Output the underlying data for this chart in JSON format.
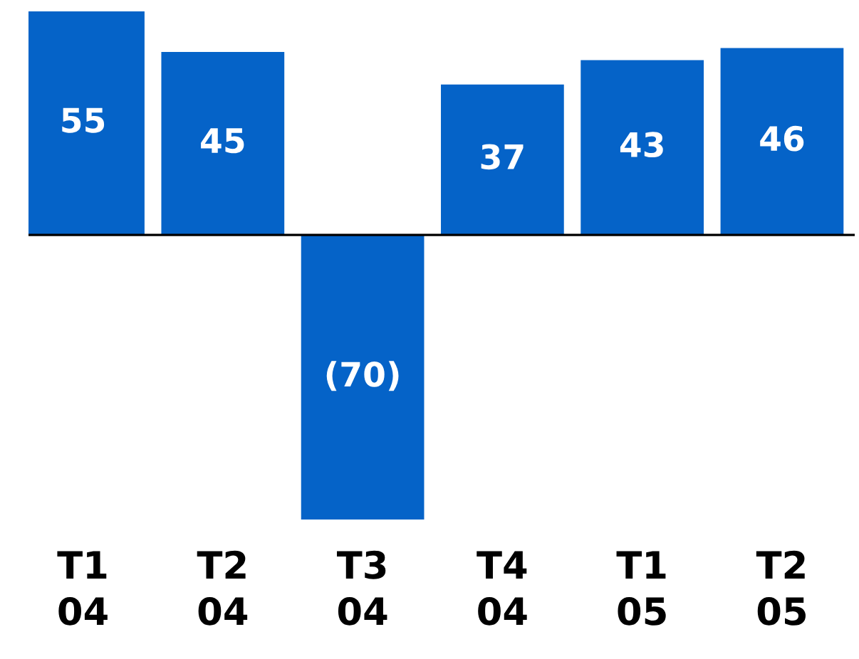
{
  "chart_data": {
    "type": "bar",
    "categories": [
      "T1\n04",
      "T2\n04",
      "T3\n04",
      "T4\n04",
      "T1\n05",
      "T2\n05"
    ],
    "values": [
      55,
      45,
      -70,
      37,
      43,
      46
    ],
    "value_labels": [
      "55",
      "45",
      "(70)",
      "37",
      "43",
      "46"
    ],
    "color": "#0563c8"
  }
}
